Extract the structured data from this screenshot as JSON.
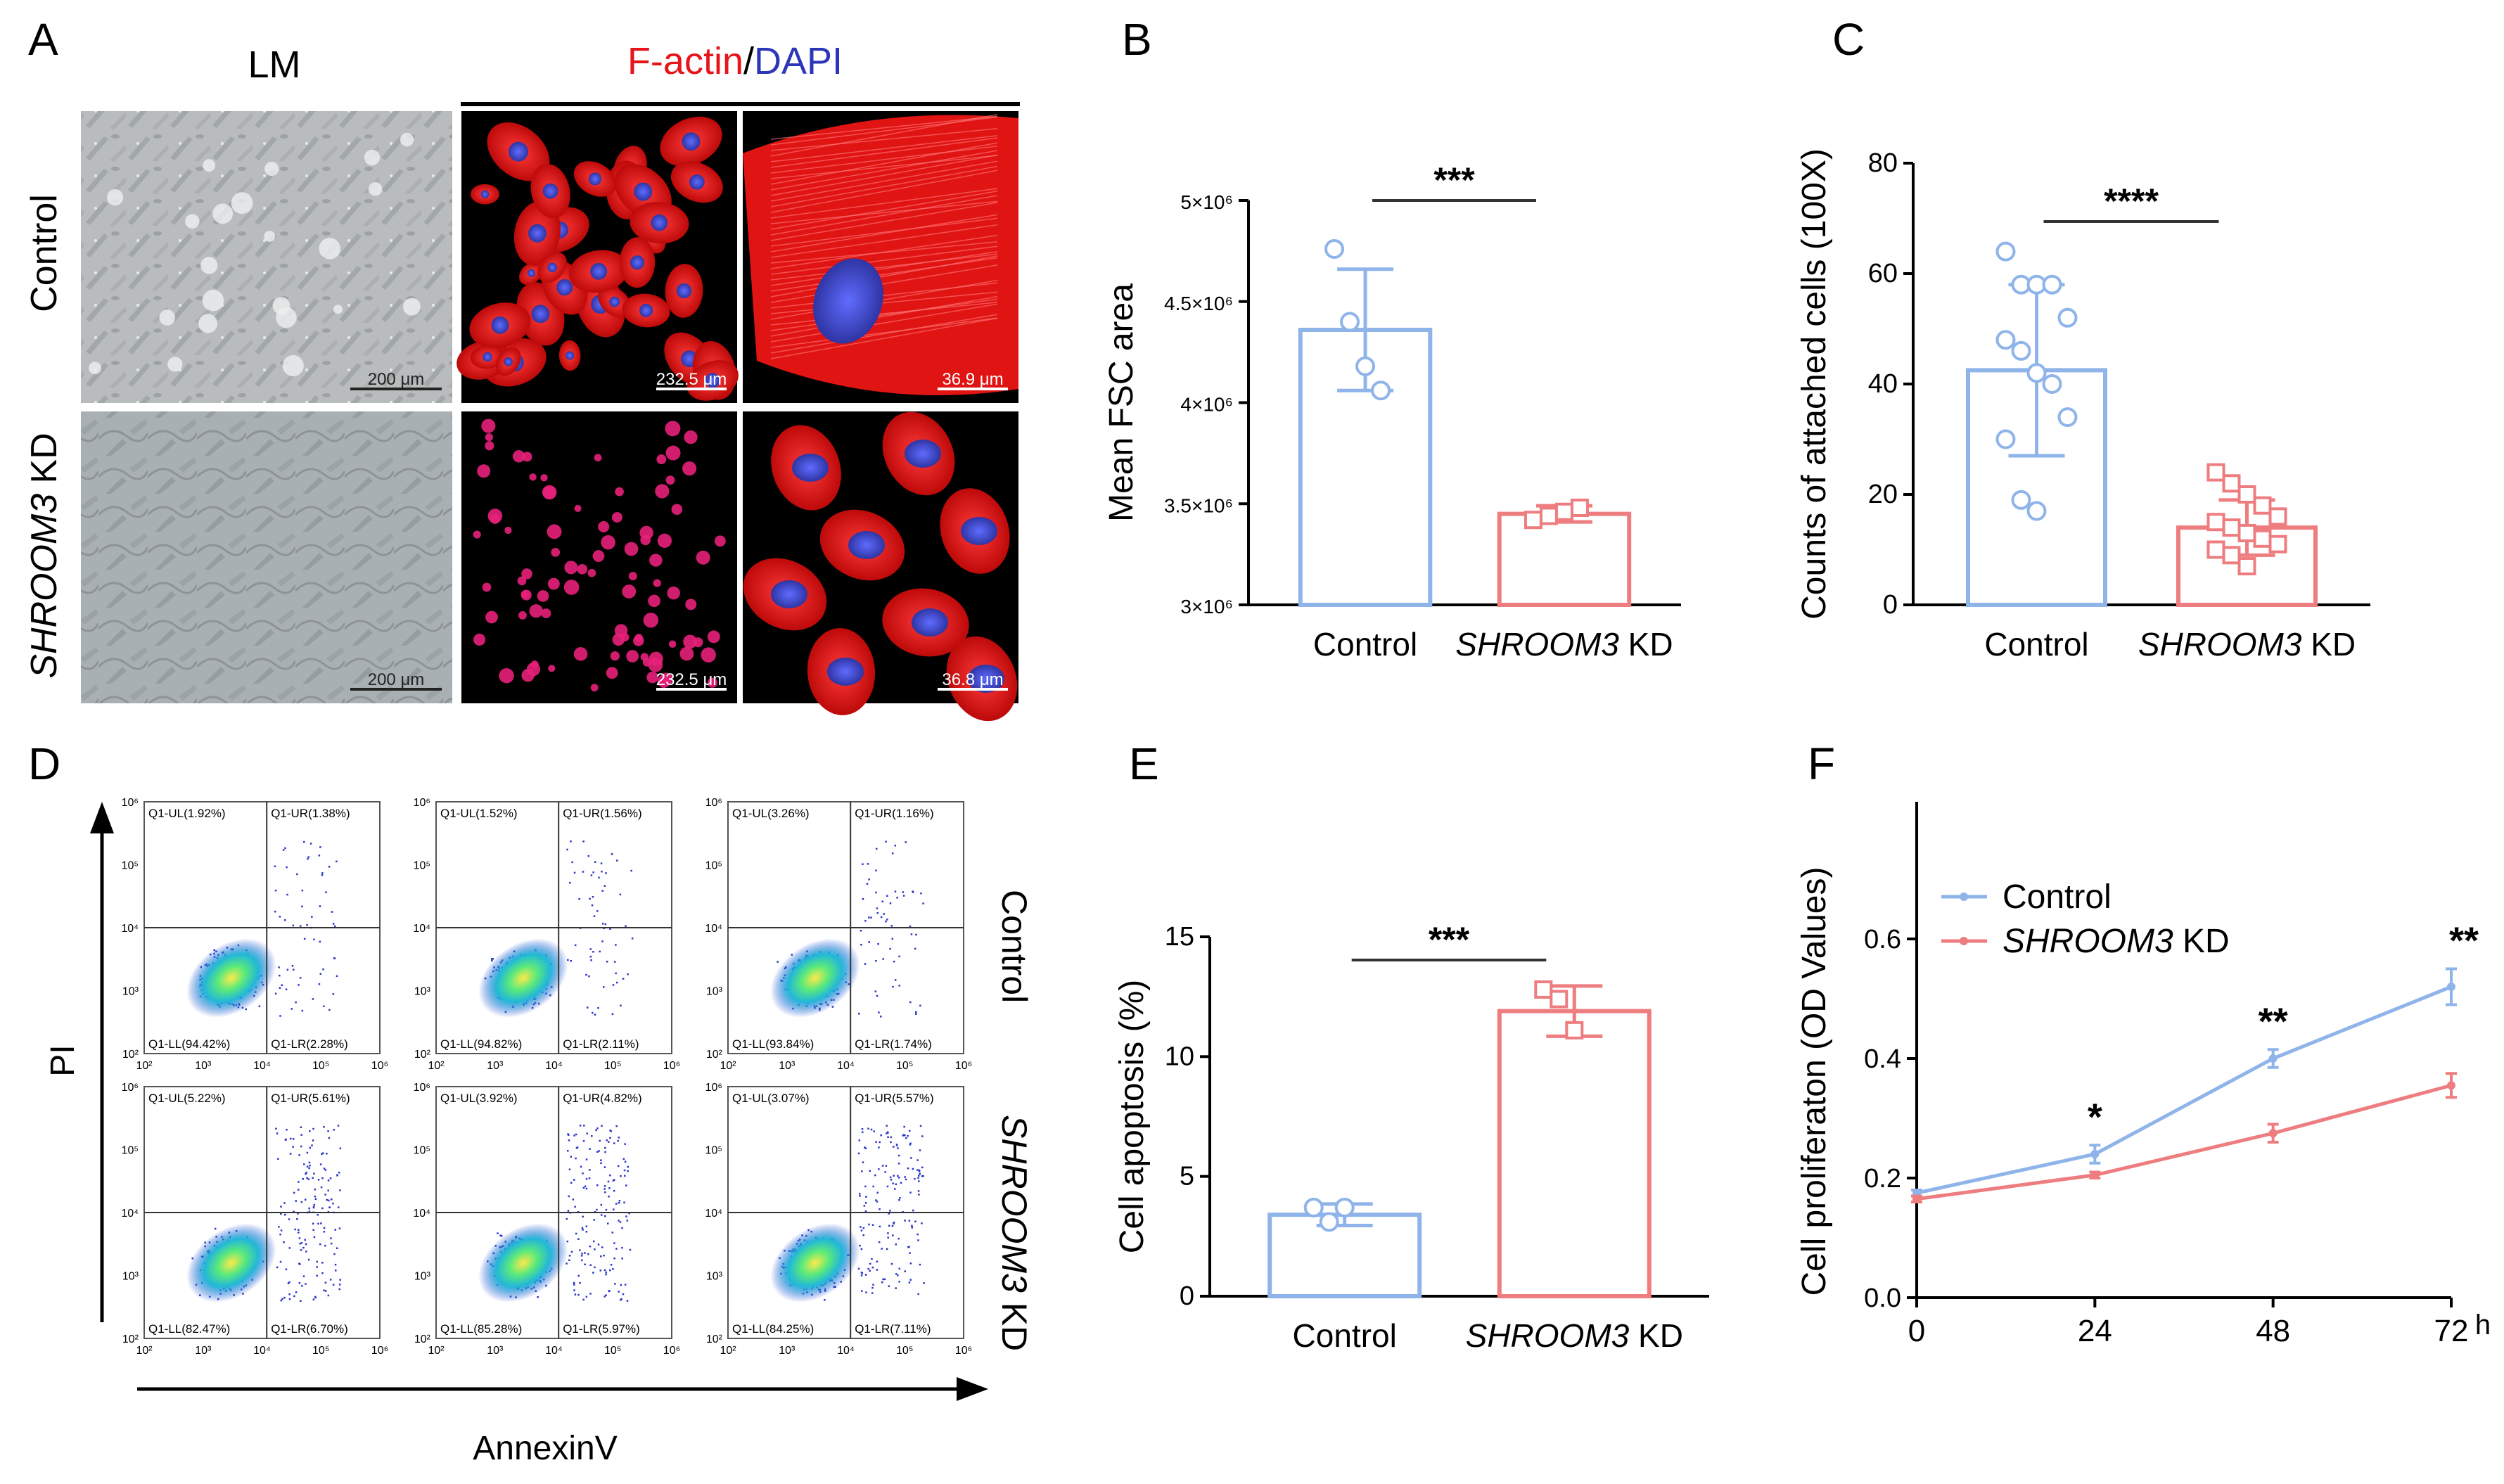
{
  "panel_letters": [
    "A",
    "B",
    "C",
    "D",
    "E",
    "F"
  ],
  "panel_a": {
    "col_lm": "LM",
    "col_factin": "F-actin",
    "col_slash": "/",
    "col_dapi": "DAPI",
    "row_control": "Control",
    "row_kd_gene": "SHROOM3",
    "row_kd_suffix": " KD",
    "scalebars": [
      [
        "200 μm",
        "232.5 μm",
        "36.9 μm"
      ],
      [
        "200 μm",
        "232.5 μm",
        "36.8 μm"
      ]
    ],
    "colors": {
      "factin": "#e8141b",
      "dapi": "#2d36b8"
    }
  },
  "panel_d": {
    "ylabel": "PI",
    "xlabel": "AnnexinV",
    "row_control": "Control",
    "row_kd_gene": "SHROOM3",
    "row_kd_suffix": " KD",
    "plots": [
      {
        "ul": "Q1-UL(1.92%)",
        "ur": "Q1-UR(1.38%)",
        "ll": "Q1-LL(94.42%)",
        "lr": "Q1-LR(2.28%)"
      },
      {
        "ul": "Q1-UL(1.52%)",
        "ur": "Q1-UR(1.56%)",
        "ll": "Q1-LL(94.82%)",
        "lr": "Q1-LR(2.11%)"
      },
      {
        "ul": "Q1-UL(3.26%)",
        "ur": "Q1-UR(1.16%)",
        "ll": "Q1-LL(93.84%)",
        "lr": "Q1-LR(1.74%)"
      },
      {
        "ul": "Q1-UL(5.22%)",
        "ur": "Q1-UR(5.61%)",
        "ll": "Q1-LL(82.47%)",
        "lr": "Q1-LR(6.70%)"
      },
      {
        "ul": "Q1-UL(3.92%)",
        "ur": "Q1-UR(4.82%)",
        "ll": "Q1-LL(85.28%)",
        "lr": "Q1-LR(5.97%)"
      },
      {
        "ul": "Q1-UL(3.07%)",
        "ur": "Q1-UR(5.57%)",
        "ll": "Q1-LL(84.25%)",
        "lr": "Q1-LR(7.11%)"
      }
    ],
    "axis_ticks": [
      "10²",
      "10³",
      "10⁴",
      "10⁵",
      "10⁶"
    ]
  },
  "chart_data": [
    {
      "panel": "B",
      "type": "bar",
      "categories": [
        "Control",
        "SHROOM3 KD"
      ],
      "values": [
        4360000,
        3450000
      ],
      "errors": [
        300000,
        40000
      ],
      "points": [
        [
          4760000,
          4400000,
          4180000,
          4060000
        ],
        [
          3420000,
          3440000,
          3460000,
          3480000
        ]
      ],
      "ylabel": "Mean FSC area",
      "ylim": [
        3000000,
        5000000
      ],
      "yticks": [
        3000000,
        3500000,
        4000000,
        4500000,
        5000000
      ],
      "ytick_labels": [
        "3×10⁶",
        "3.5×10⁶",
        "4×10⁶",
        "4.5×10⁶",
        "5×10⁶"
      ],
      "significance": "***",
      "colors": [
        "#8fb4ea",
        "#ee7d80"
      ]
    },
    {
      "panel": "C",
      "type": "bar",
      "categories": [
        "Control",
        "SHROOM3 KD"
      ],
      "values": [
        42.5,
        14
      ],
      "errors": [
        15.5,
        5
      ],
      "points": [
        [
          64,
          58,
          58,
          58,
          52,
          48,
          46,
          42,
          40,
          34,
          30,
          19,
          17
        ],
        [
          24,
          22,
          20,
          18,
          16,
          15,
          14,
          13,
          12,
          11,
          10,
          9,
          7
        ]
      ],
      "ylabel": "Counts of attached cells (100X)",
      "ylim": [
        0,
        80
      ],
      "yticks": [
        0,
        20,
        40,
        60,
        80
      ],
      "significance": "****",
      "colors": [
        "#8fb4ea",
        "#ee7d80"
      ]
    },
    {
      "panel": "E",
      "type": "bar",
      "categories": [
        "Control",
        "SHROOM3 KD"
      ],
      "values": [
        3.4,
        11.9
      ],
      "errors": [
        0.45,
        1.05
      ],
      "points": [
        [
          3.7,
          3.1,
          3.7
        ],
        [
          12.8,
          12.4,
          11.1
        ]
      ],
      "ylabel": "Cell apoptosis (%)",
      "ylim": [
        0,
        15
      ],
      "yticks": [
        0,
        5,
        10,
        15
      ],
      "significance": "***",
      "colors": [
        "#8fb4ea",
        "#ee7d80"
      ]
    },
    {
      "panel": "F",
      "type": "line",
      "x": [
        0,
        24,
        48,
        72
      ],
      "series": [
        {
          "name": "Control",
          "values": [
            0.175,
            0.24,
            0.4,
            0.52
          ],
          "errors": [
            0.005,
            0.015,
            0.015,
            0.03
          ],
          "color": "#8fb4ea"
        },
        {
          "name": "SHROOM3 KD",
          "values": [
            0.165,
            0.205,
            0.275,
            0.355
          ],
          "errors": [
            0.005,
            0.005,
            0.015,
            0.02
          ],
          "color": "#ee7d80"
        }
      ],
      "significance": [
        "",
        "*",
        "**",
        "**"
      ],
      "ylabel": "Cell proliferaton (OD Values)",
      "x_unit": "h",
      "ylim": [
        0,
        0.6
      ],
      "yticks": [
        0.0,
        0.2,
        0.4,
        0.6
      ],
      "ytick_labels": [
        "0.0",
        "0.2",
        "0.4",
        "0.6"
      ],
      "xticks": [
        0,
        24,
        48,
        72
      ],
      "legend": "top-left"
    }
  ]
}
